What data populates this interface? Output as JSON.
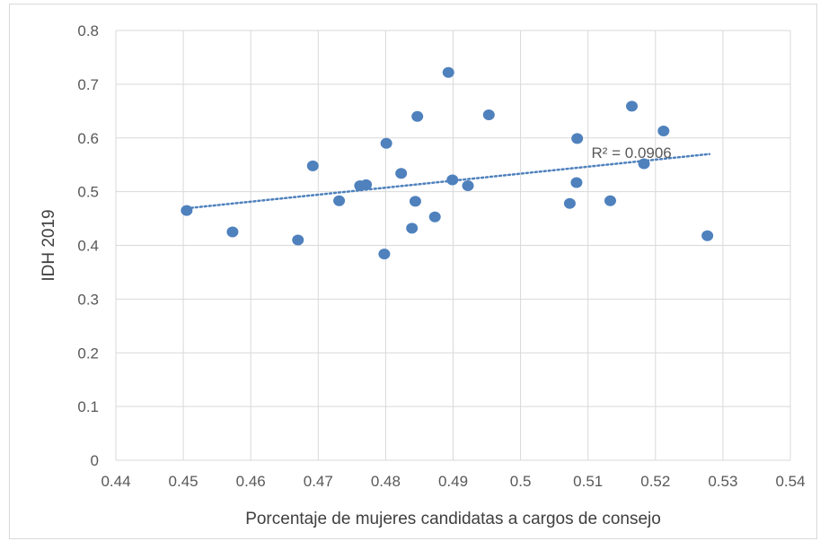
{
  "chart_data": {
    "type": "scatter",
    "xlabel": "Porcentaje de mujeres candidatas a cargos de consejo",
    "ylabel": "IDH 2019",
    "xlim": [
      0.44,
      0.54
    ],
    "ylim": [
      0,
      0.8
    ],
    "x_ticks": [
      "0.44",
      "0.45",
      "0.46",
      "0.47",
      "0.48",
      "0.49",
      "0.5",
      "0.51",
      "0.52",
      "0.53",
      "0.54"
    ],
    "y_ticks": [
      "0",
      "0.1",
      "0.2",
      "0.3",
      "0.4",
      "0.5",
      "0.6",
      "0.7",
      "0.8"
    ],
    "grid": true,
    "marker_color": "#4f81bd",
    "trendline": {
      "type": "linear",
      "style": "dotted",
      "color": "#4f81bd",
      "x_start": 0.4505,
      "y_start": 0.469,
      "x_end": 0.528,
      "y_end": 0.57
    },
    "annotation": "R² = 0.0906",
    "points": [
      {
        "x": 0.4505,
        "y": 0.465
      },
      {
        "x": 0.4573,
        "y": 0.425
      },
      {
        "x": 0.467,
        "y": 0.41
      },
      {
        "x": 0.4692,
        "y": 0.548
      },
      {
        "x": 0.4731,
        "y": 0.483
      },
      {
        "x": 0.4762,
        "y": 0.511
      },
      {
        "x": 0.4771,
        "y": 0.513
      },
      {
        "x": 0.4798,
        "y": 0.384
      },
      {
        "x": 0.4801,
        "y": 0.59
      },
      {
        "x": 0.4823,
        "y": 0.534
      },
      {
        "x": 0.4839,
        "y": 0.432
      },
      {
        "x": 0.4844,
        "y": 0.482
      },
      {
        "x": 0.4847,
        "y": 0.64
      },
      {
        "x": 0.4873,
        "y": 0.453
      },
      {
        "x": 0.4893,
        "y": 0.722
      },
      {
        "x": 0.4899,
        "y": 0.522
      },
      {
        "x": 0.4922,
        "y": 0.511
      },
      {
        "x": 0.4953,
        "y": 0.643
      },
      {
        "x": 0.5073,
        "y": 0.478
      },
      {
        "x": 0.5083,
        "y": 0.517
      },
      {
        "x": 0.5084,
        "y": 0.599
      },
      {
        "x": 0.5133,
        "y": 0.483
      },
      {
        "x": 0.5165,
        "y": 0.659
      },
      {
        "x": 0.5183,
        "y": 0.552
      },
      {
        "x": 0.5212,
        "y": 0.613
      },
      {
        "x": 0.5277,
        "y": 0.418
      }
    ]
  }
}
